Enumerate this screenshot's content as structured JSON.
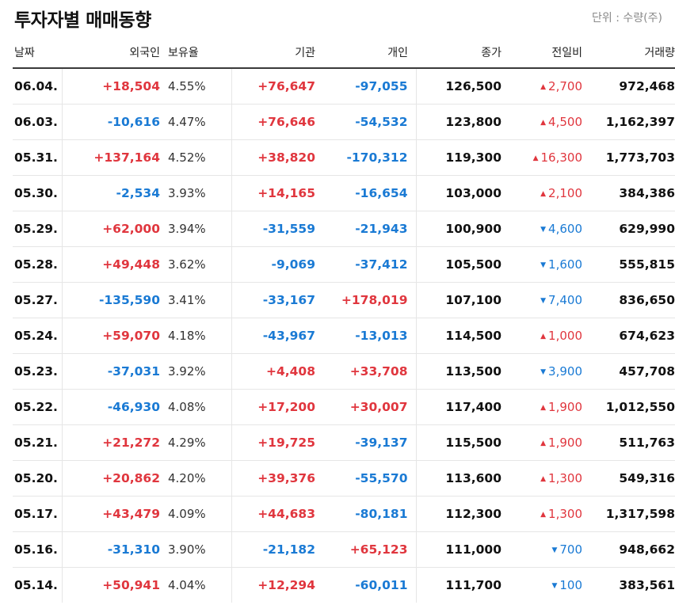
{
  "title": "투자자별 매매동향",
  "unit": "단위 : 수량(주)",
  "headers": {
    "date": "날짜",
    "foreign": "외국인",
    "ownership": "보유율",
    "institution": "기관",
    "individual": "개인",
    "close": "종가",
    "change": "전일비",
    "volume": "거래량"
  },
  "colors": {
    "up": "#e0363e",
    "down": "#1a7ad4"
  },
  "rows": [
    {
      "date": "06.04.",
      "foreign": "+18,504",
      "ownership": "4.55%",
      "institution": "+76,647",
      "individual": "-97,055",
      "close": "126,500",
      "change_dir": "up",
      "change_icon": "up-triangle-icon",
      "change": "2,700",
      "volume": "972,468"
    },
    {
      "date": "06.03.",
      "foreign": "-10,616",
      "ownership": "4.47%",
      "institution": "+76,646",
      "individual": "-54,532",
      "close": "123,800",
      "change_dir": "up",
      "change_icon": "up-triangle-icon",
      "change": "4,500",
      "volume": "1,162,397"
    },
    {
      "date": "05.31.",
      "foreign": "+137,164",
      "ownership": "4.52%",
      "institution": "+38,820",
      "individual": "-170,312",
      "close": "119,300",
      "change_dir": "up",
      "change_icon": "up-triangle-icon",
      "change": "16,300",
      "volume": "1,773,703"
    },
    {
      "date": "05.30.",
      "foreign": "-2,534",
      "ownership": "3.93%",
      "institution": "+14,165",
      "individual": "-16,654",
      "close": "103,000",
      "change_dir": "up",
      "change_icon": "up-triangle-icon",
      "change": "2,100",
      "volume": "384,386"
    },
    {
      "date": "05.29.",
      "foreign": "+62,000",
      "ownership": "3.94%",
      "institution": "-31,559",
      "individual": "-21,943",
      "close": "100,900",
      "change_dir": "down",
      "change_icon": "down-triangle-icon",
      "change": "4,600",
      "volume": "629,990"
    },
    {
      "date": "05.28.",
      "foreign": "+49,448",
      "ownership": "3.62%",
      "institution": "-9,069",
      "individual": "-37,412",
      "close": "105,500",
      "change_dir": "down",
      "change_icon": "down-triangle-icon",
      "change": "1,600",
      "volume": "555,815"
    },
    {
      "date": "05.27.",
      "foreign": "-135,590",
      "ownership": "3.41%",
      "institution": "-33,167",
      "individual": "+178,019",
      "close": "107,100",
      "change_dir": "down",
      "change_icon": "down-triangle-icon",
      "change": "7,400",
      "volume": "836,650"
    },
    {
      "date": "05.24.",
      "foreign": "+59,070",
      "ownership": "4.18%",
      "institution": "-43,967",
      "individual": "-13,013",
      "close": "114,500",
      "change_dir": "up",
      "change_icon": "up-triangle-icon",
      "change": "1,000",
      "volume": "674,623"
    },
    {
      "date": "05.23.",
      "foreign": "-37,031",
      "ownership": "3.92%",
      "institution": "+4,408",
      "individual": "+33,708",
      "close": "113,500",
      "change_dir": "down",
      "change_icon": "down-triangle-icon",
      "change": "3,900",
      "volume": "457,708"
    },
    {
      "date": "05.22.",
      "foreign": "-46,930",
      "ownership": "4.08%",
      "institution": "+17,200",
      "individual": "+30,007",
      "close": "117,400",
      "change_dir": "up",
      "change_icon": "up-triangle-icon",
      "change": "1,900",
      "volume": "1,012,550"
    },
    {
      "date": "05.21.",
      "foreign": "+21,272",
      "ownership": "4.29%",
      "institution": "+19,725",
      "individual": "-39,137",
      "close": "115,500",
      "change_dir": "up",
      "change_icon": "up-triangle-icon",
      "change": "1,900",
      "volume": "511,763"
    },
    {
      "date": "05.20.",
      "foreign": "+20,862",
      "ownership": "4.20%",
      "institution": "+39,376",
      "individual": "-55,570",
      "close": "113,600",
      "change_dir": "up",
      "change_icon": "up-triangle-icon",
      "change": "1,300",
      "volume": "549,316"
    },
    {
      "date": "05.17.",
      "foreign": "+43,479",
      "ownership": "4.09%",
      "institution": "+44,683",
      "individual": "-80,181",
      "close": "112,300",
      "change_dir": "up",
      "change_icon": "up-triangle-icon",
      "change": "1,300",
      "volume": "1,317,598"
    },
    {
      "date": "05.16.",
      "foreign": "-31,310",
      "ownership": "3.90%",
      "institution": "-21,182",
      "individual": "+65,123",
      "close": "111,000",
      "change_dir": "down",
      "change_icon": "down-triangle-icon",
      "change": "700",
      "volume": "948,662"
    },
    {
      "date": "05.14.",
      "foreign": "+50,941",
      "ownership": "4.04%",
      "institution": "+12,294",
      "individual": "-60,011",
      "close": "111,700",
      "change_dir": "down",
      "change_icon": "down-triangle-icon",
      "change": "100",
      "volume": "383,561"
    }
  ]
}
